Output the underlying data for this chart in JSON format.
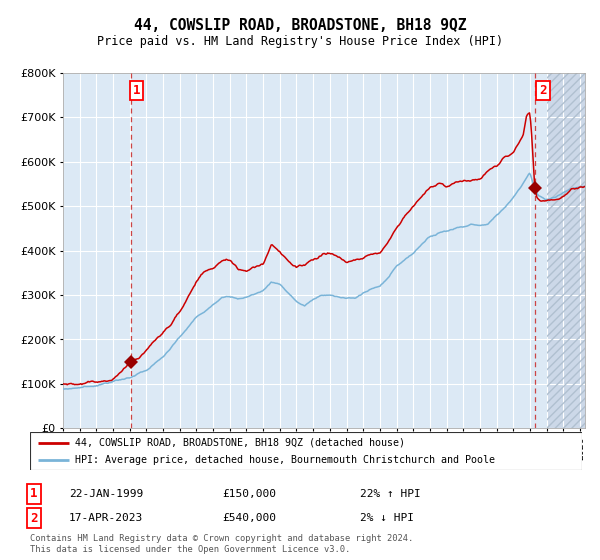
{
  "title": "44, COWSLIP ROAD, BROADSTONE, BH18 9QZ",
  "subtitle": "Price paid vs. HM Land Registry's House Price Index (HPI)",
  "legend_line1": "44, COWSLIP ROAD, BROADSTONE, BH18 9QZ (detached house)",
  "legend_line2": "HPI: Average price, detached house, Bournemouth Christchurch and Poole",
  "transaction1_date": "22-JAN-1999",
  "transaction1_price": "£150,000",
  "transaction1_hpi": "22% ↑ HPI",
  "transaction2_date": "17-APR-2023",
  "transaction2_price": "£540,000",
  "transaction2_hpi": "2% ↓ HPI",
  "footer": "Contains HM Land Registry data © Crown copyright and database right 2024.\nThis data is licensed under the Open Government Licence v3.0.",
  "hpi_color": "#7ab4d8",
  "price_color": "#cc0000",
  "marker_color": "#990000",
  "vline1_color": "#cc4444",
  "vline2_color": "#cc4444",
  "bg_color": "#dce9f5",
  "hatch_bg_color": "#d0dded",
  "grid_color": "#c8d8e8",
  "ylim": [
    0,
    800000
  ],
  "yticks": [
    0,
    100000,
    200000,
    300000,
    400000,
    500000,
    600000,
    700000,
    800000
  ],
  "xlim_start": 1995.0,
  "xlim_end": 2026.3,
  "transaction1_x": 1999.05,
  "transaction2_x": 2023.29,
  "marker1_y": 150000,
  "marker2_y": 540000,
  "vline1_x": 1999.05,
  "vline2_x": 2023.29
}
